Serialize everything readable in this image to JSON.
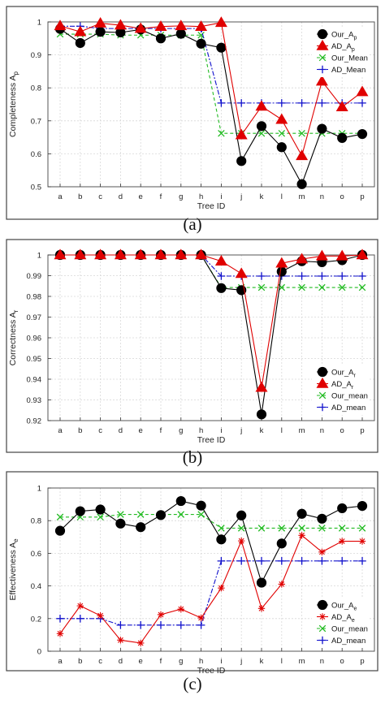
{
  "colors": {
    "ours": "#000000",
    "ad": "#e00000",
    "our_mean": "#22bb22",
    "ad_mean": "#1111cc",
    "grid": "#d8d8d8",
    "frame": "#555555"
  },
  "chart_data": [
    {
      "type": "line",
      "caption": "(a)",
      "xlabel": "Tree ID",
      "ylabel": "Completeness A",
      "ylabel_sub": "p",
      "ylim": [
        0.5,
        1.0
      ],
      "yticks": [
        "0.5",
        "0.6",
        "0.7",
        "0.8",
        "0.9",
        "1"
      ],
      "ytick_values": [
        0.5,
        0.6,
        0.7,
        0.8,
        0.9,
        1.0
      ],
      "categories": [
        "a",
        "b",
        "c",
        "d",
        "e",
        "f",
        "g",
        "h",
        "i",
        "j",
        "k",
        "l",
        "m",
        "n",
        "o",
        "p"
      ],
      "grid": true,
      "legend": "top-right",
      "series": [
        {
          "name": "Our_A",
          "sub": "p",
          "marker": "circle",
          "color_key": "ours",
          "values": [
            0.979,
            0.936,
            0.97,
            0.968,
            0.977,
            0.95,
            0.964,
            0.934,
            0.922,
            0.578,
            0.684,
            0.62,
            0.508,
            0.676,
            0.648,
            0.66
          ]
        },
        {
          "name": "AD_A",
          "sub": "p",
          "marker": "triangle",
          "color_key": "ad",
          "values": [
            0.988,
            0.97,
            0.996,
            0.99,
            0.98,
            0.986,
            0.988,
            0.986,
            0.998,
            0.657,
            0.744,
            0.704,
            0.594,
            0.82,
            0.742,
            0.788
          ]
        },
        {
          "name": "Our_Mean",
          "sub": "",
          "marker": "x",
          "color_key": "our_mean",
          "dash": "4,3",
          "values": [
            0.963,
            0.963,
            0.963,
            0.96,
            0.96,
            0.96,
            0.96,
            0.96,
            0.662,
            0.662,
            0.662,
            0.662,
            0.662,
            0.662,
            0.662,
            0.662
          ]
        },
        {
          "name": "AD_Mean",
          "sub": "",
          "marker": "plus",
          "color_key": "ad_mean",
          "dash": "6,2,2,2",
          "values": [
            0.987,
            0.987,
            0.98,
            0.98,
            0.98,
            0.98,
            0.98,
            0.98,
            0.754,
            0.754,
            0.754,
            0.754,
            0.754,
            0.754,
            0.754,
            0.754
          ]
        }
      ]
    },
    {
      "type": "line",
      "caption": "(b)",
      "xlabel": "Tree ID",
      "ylabel": "Correctness A",
      "ylabel_sub": "r",
      "ylim": [
        0.92,
        1.0
      ],
      "yticks": [
        "0.92",
        "0.93",
        "0.94",
        "0.95",
        "0.96",
        "0.97",
        "0.98",
        "0.99",
        "1"
      ],
      "ytick_values": [
        0.92,
        0.93,
        0.94,
        0.95,
        0.96,
        0.97,
        0.98,
        0.99,
        1.0
      ],
      "categories": [
        "a",
        "b",
        "c",
        "d",
        "e",
        "f",
        "g",
        "h",
        "i",
        "j",
        "k",
        "l",
        "m",
        "n",
        "o",
        "p"
      ],
      "grid": true,
      "legend": "bottom-right",
      "series": [
        {
          "name": "Our_A",
          "sub": "r",
          "marker": "circle",
          "color_key": "ours",
          "values": [
            1.0,
            1.0,
            1.0,
            1.0,
            1.0,
            1.0,
            1.0,
            1.0,
            0.984,
            0.983,
            0.923,
            0.992,
            0.997,
            0.9965,
            0.9975,
            1.0
          ]
        },
        {
          "name": "AD_A",
          "sub": "r",
          "marker": "triangle",
          "color_key": "ad",
          "values": [
            1.0,
            1.0,
            1.0,
            1.0,
            1.0,
            1.0,
            1.0,
            1.0,
            0.997,
            0.991,
            0.936,
            0.996,
            0.998,
            0.9995,
            0.9995,
            1.0
          ]
        },
        {
          "name": "Our_mean",
          "sub": "",
          "marker": "x",
          "color_key": "our_mean",
          "dash": "4,3",
          "values": [
            1.0,
            1.0,
            1.0,
            1.0,
            1.0,
            1.0,
            1.0,
            1.0,
            0.9843,
            0.9843,
            0.9843,
            0.9843,
            0.9843,
            0.9843,
            0.9843,
            0.9843
          ]
        },
        {
          "name": "AD_mean",
          "sub": "",
          "marker": "plus",
          "color_key": "ad_mean",
          "dash": "6,2,2,2",
          "values": [
            1.0,
            1.0,
            1.0,
            1.0,
            1.0,
            1.0,
            1.0,
            1.0,
            0.9898,
            0.9898,
            0.9898,
            0.9898,
            0.9898,
            0.9898,
            0.9898,
            0.9898
          ]
        }
      ]
    },
    {
      "type": "line",
      "caption": "(c)",
      "xlabel": "Tree ID",
      "ylabel": "Effectiveness A",
      "ylabel_sub": "e",
      "ylim": [
        0,
        1.0
      ],
      "yticks": [
        "0",
        "0.2",
        "0.4",
        "0.6",
        "0.8",
        "1"
      ],
      "ytick_values": [
        0,
        0.2,
        0.4,
        0.6,
        0.8,
        1.0
      ],
      "categories": [
        "a",
        "b",
        "c",
        "d",
        "e",
        "f",
        "g",
        "h",
        "i",
        "j",
        "k",
        "l",
        "m",
        "n",
        "o",
        "p"
      ],
      "grid": true,
      "legend": "bottom-right",
      "series": [
        {
          "name": "Our_A",
          "sub": "e",
          "marker": "circle",
          "color_key": "ours",
          "values": [
            0.738,
            0.858,
            0.868,
            0.782,
            0.76,
            0.834,
            0.92,
            0.892,
            0.685,
            0.832,
            0.42,
            0.66,
            0.842,
            0.812,
            0.876,
            0.89
          ]
        },
        {
          "name": "AD_A",
          "sub": "e",
          "marker": "star",
          "color_key": "ad",
          "values": [
            0.108,
            0.278,
            0.218,
            0.068,
            0.05,
            0.224,
            0.258,
            0.204,
            0.387,
            0.676,
            0.262,
            0.411,
            0.71,
            0.608,
            0.674,
            0.674
          ]
        },
        {
          "name": "Our_mean",
          "sub": "",
          "marker": "x",
          "color_key": "our_mean",
          "dash": "4,3",
          "values": [
            0.822,
            0.822,
            0.822,
            0.838,
            0.838,
            0.838,
            0.838,
            0.838,
            0.754,
            0.754,
            0.754,
            0.754,
            0.754,
            0.754,
            0.754,
            0.754
          ]
        },
        {
          "name": "AD_mean",
          "sub": "",
          "marker": "plus",
          "color_key": "ad_mean",
          "dash": "6,2,2,2",
          "values": [
            0.2,
            0.2,
            0.2,
            0.16,
            0.16,
            0.16,
            0.16,
            0.16,
            0.553,
            0.553,
            0.553,
            0.553,
            0.553,
            0.553,
            0.553,
            0.553
          ]
        }
      ]
    }
  ]
}
